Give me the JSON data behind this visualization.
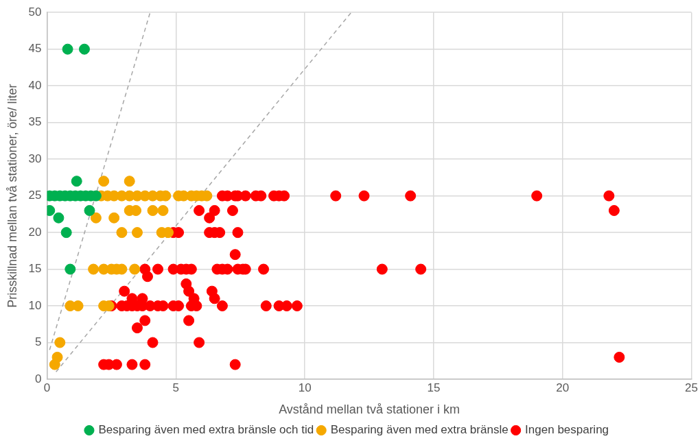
{
  "chart_data": {
    "type": "scatter",
    "xlabel": "Avstånd mellan två stationer i km",
    "ylabel": "Prisskillnad mellan två stationer, öre/ liter",
    "xlim": [
      0,
      25
    ],
    "xticks": [
      0,
      5,
      10,
      15,
      20,
      25
    ],
    "ylim": [
      0,
      50
    ],
    "yticks": [
      0,
      5,
      10,
      15,
      20,
      25,
      30,
      35,
      40,
      45,
      50
    ],
    "grid": true,
    "legend": "bottom",
    "marker": "circle",
    "series": [
      {
        "name": "Besparing även med extra bränsle och tid",
        "color": "#00b050",
        "x": [
          0.1,
          0.3,
          0.5,
          0.7,
          0.9,
          1.1,
          1.3,
          1.5,
          1.7,
          1.9,
          0.1,
          0.45,
          0.75,
          0.9,
          1.15,
          1.65,
          0.8,
          1.45
        ],
        "values": [
          25,
          25,
          25,
          25,
          25,
          25,
          25,
          25,
          25,
          25,
          23,
          22,
          20,
          15,
          27,
          23,
          45,
          45
        ]
      },
      {
        "name": "Besparing även med extra bränsle",
        "color": "#f5a800",
        "x": [
          2.2,
          3.2,
          2.1,
          2.35,
          2.6,
          2.9,
          3.2,
          3.5,
          3.8,
          4.1,
          4.4,
          4.6,
          5.1,
          5.3,
          5.6,
          5.8,
          6.0,
          6.2,
          3.2,
          3.45,
          4.1,
          4.5,
          2.6,
          1.9,
          2.9,
          3.5,
          4.45,
          4.7,
          1.8,
          2.2,
          2.5,
          2.7,
          2.9,
          3.4,
          0.9,
          1.2,
          2.2,
          2.4,
          0.5,
          0.4,
          0.3
        ],
        "values": [
          27,
          27,
          25,
          25,
          25,
          25,
          25,
          25,
          25,
          25,
          25,
          25,
          25,
          25,
          25,
          25,
          25,
          25,
          23,
          23,
          23,
          23,
          22,
          22,
          20,
          20,
          20,
          20,
          15,
          15,
          15,
          15,
          15,
          15,
          10,
          10,
          10,
          10,
          5,
          3,
          2
        ]
      },
      {
        "name": "Ingen besparing",
        "color": "#ff0000",
        "x": [
          6.8,
          7.0,
          7.3,
          7.4,
          7.7,
          8.1,
          8.3,
          8.8,
          9.0,
          9.2,
          11.2,
          12.3,
          14.1,
          19.0,
          21.8,
          22.0,
          5.9,
          6.5,
          7.2,
          6.3,
          4.9,
          5.1,
          6.3,
          6.5,
          6.7,
          7.4,
          7.3,
          3.8,
          4.3,
          4.9,
          5.2,
          5.4,
          5.6,
          6.6,
          6.8,
          7.0,
          7.4,
          7.6,
          7.7,
          8.4,
          13.0,
          14.5,
          3.9,
          5.4,
          5.5,
          6.4,
          3.0,
          5.7,
          6.5,
          3.3,
          3.7,
          2.5,
          2.9,
          3.1,
          3.3,
          3.5,
          3.7,
          4.0,
          4.3,
          4.5,
          4.9,
          5.1,
          5.6,
          5.8,
          6.8,
          8.5,
          9.0,
          9.3,
          9.7,
          3.8,
          5.5,
          3.5,
          4.1,
          5.9,
          2.2,
          2.4,
          2.7,
          3.3,
          3.8,
          7.3,
          22.2
        ],
        "values": [
          25,
          25,
          25,
          25,
          25,
          25,
          25,
          25,
          25,
          25,
          25,
          25,
          25,
          25,
          25,
          23,
          23,
          23,
          23,
          22,
          20,
          20,
          20,
          20,
          20,
          20,
          17,
          15,
          15,
          15,
          15,
          15,
          15,
          15,
          15,
          15,
          15,
          15,
          15,
          15,
          15,
          15,
          14,
          13,
          12,
          12,
          12,
          11,
          11,
          11,
          11,
          10,
          10,
          10,
          10,
          10,
          10,
          10,
          10,
          10,
          10,
          10,
          10,
          10,
          10,
          10,
          10,
          10,
          10,
          8,
          8,
          7,
          5,
          5,
          2,
          2,
          2,
          2,
          2,
          2,
          3
        ]
      },
      {
        "type": "line",
        "color": "#a6a6a6",
        "line_style": "dashed",
        "marker": "none",
        "x": [
          0.1,
          4.0
        ],
        "values": [
          4,
          50
        ]
      },
      {
        "type": "line",
        "color": "#a6a6a6",
        "line_style": "dashed",
        "marker": "none",
        "x": [
          0.35,
          11.8
        ],
        "values": [
          1,
          50
        ]
      }
    ]
  }
}
